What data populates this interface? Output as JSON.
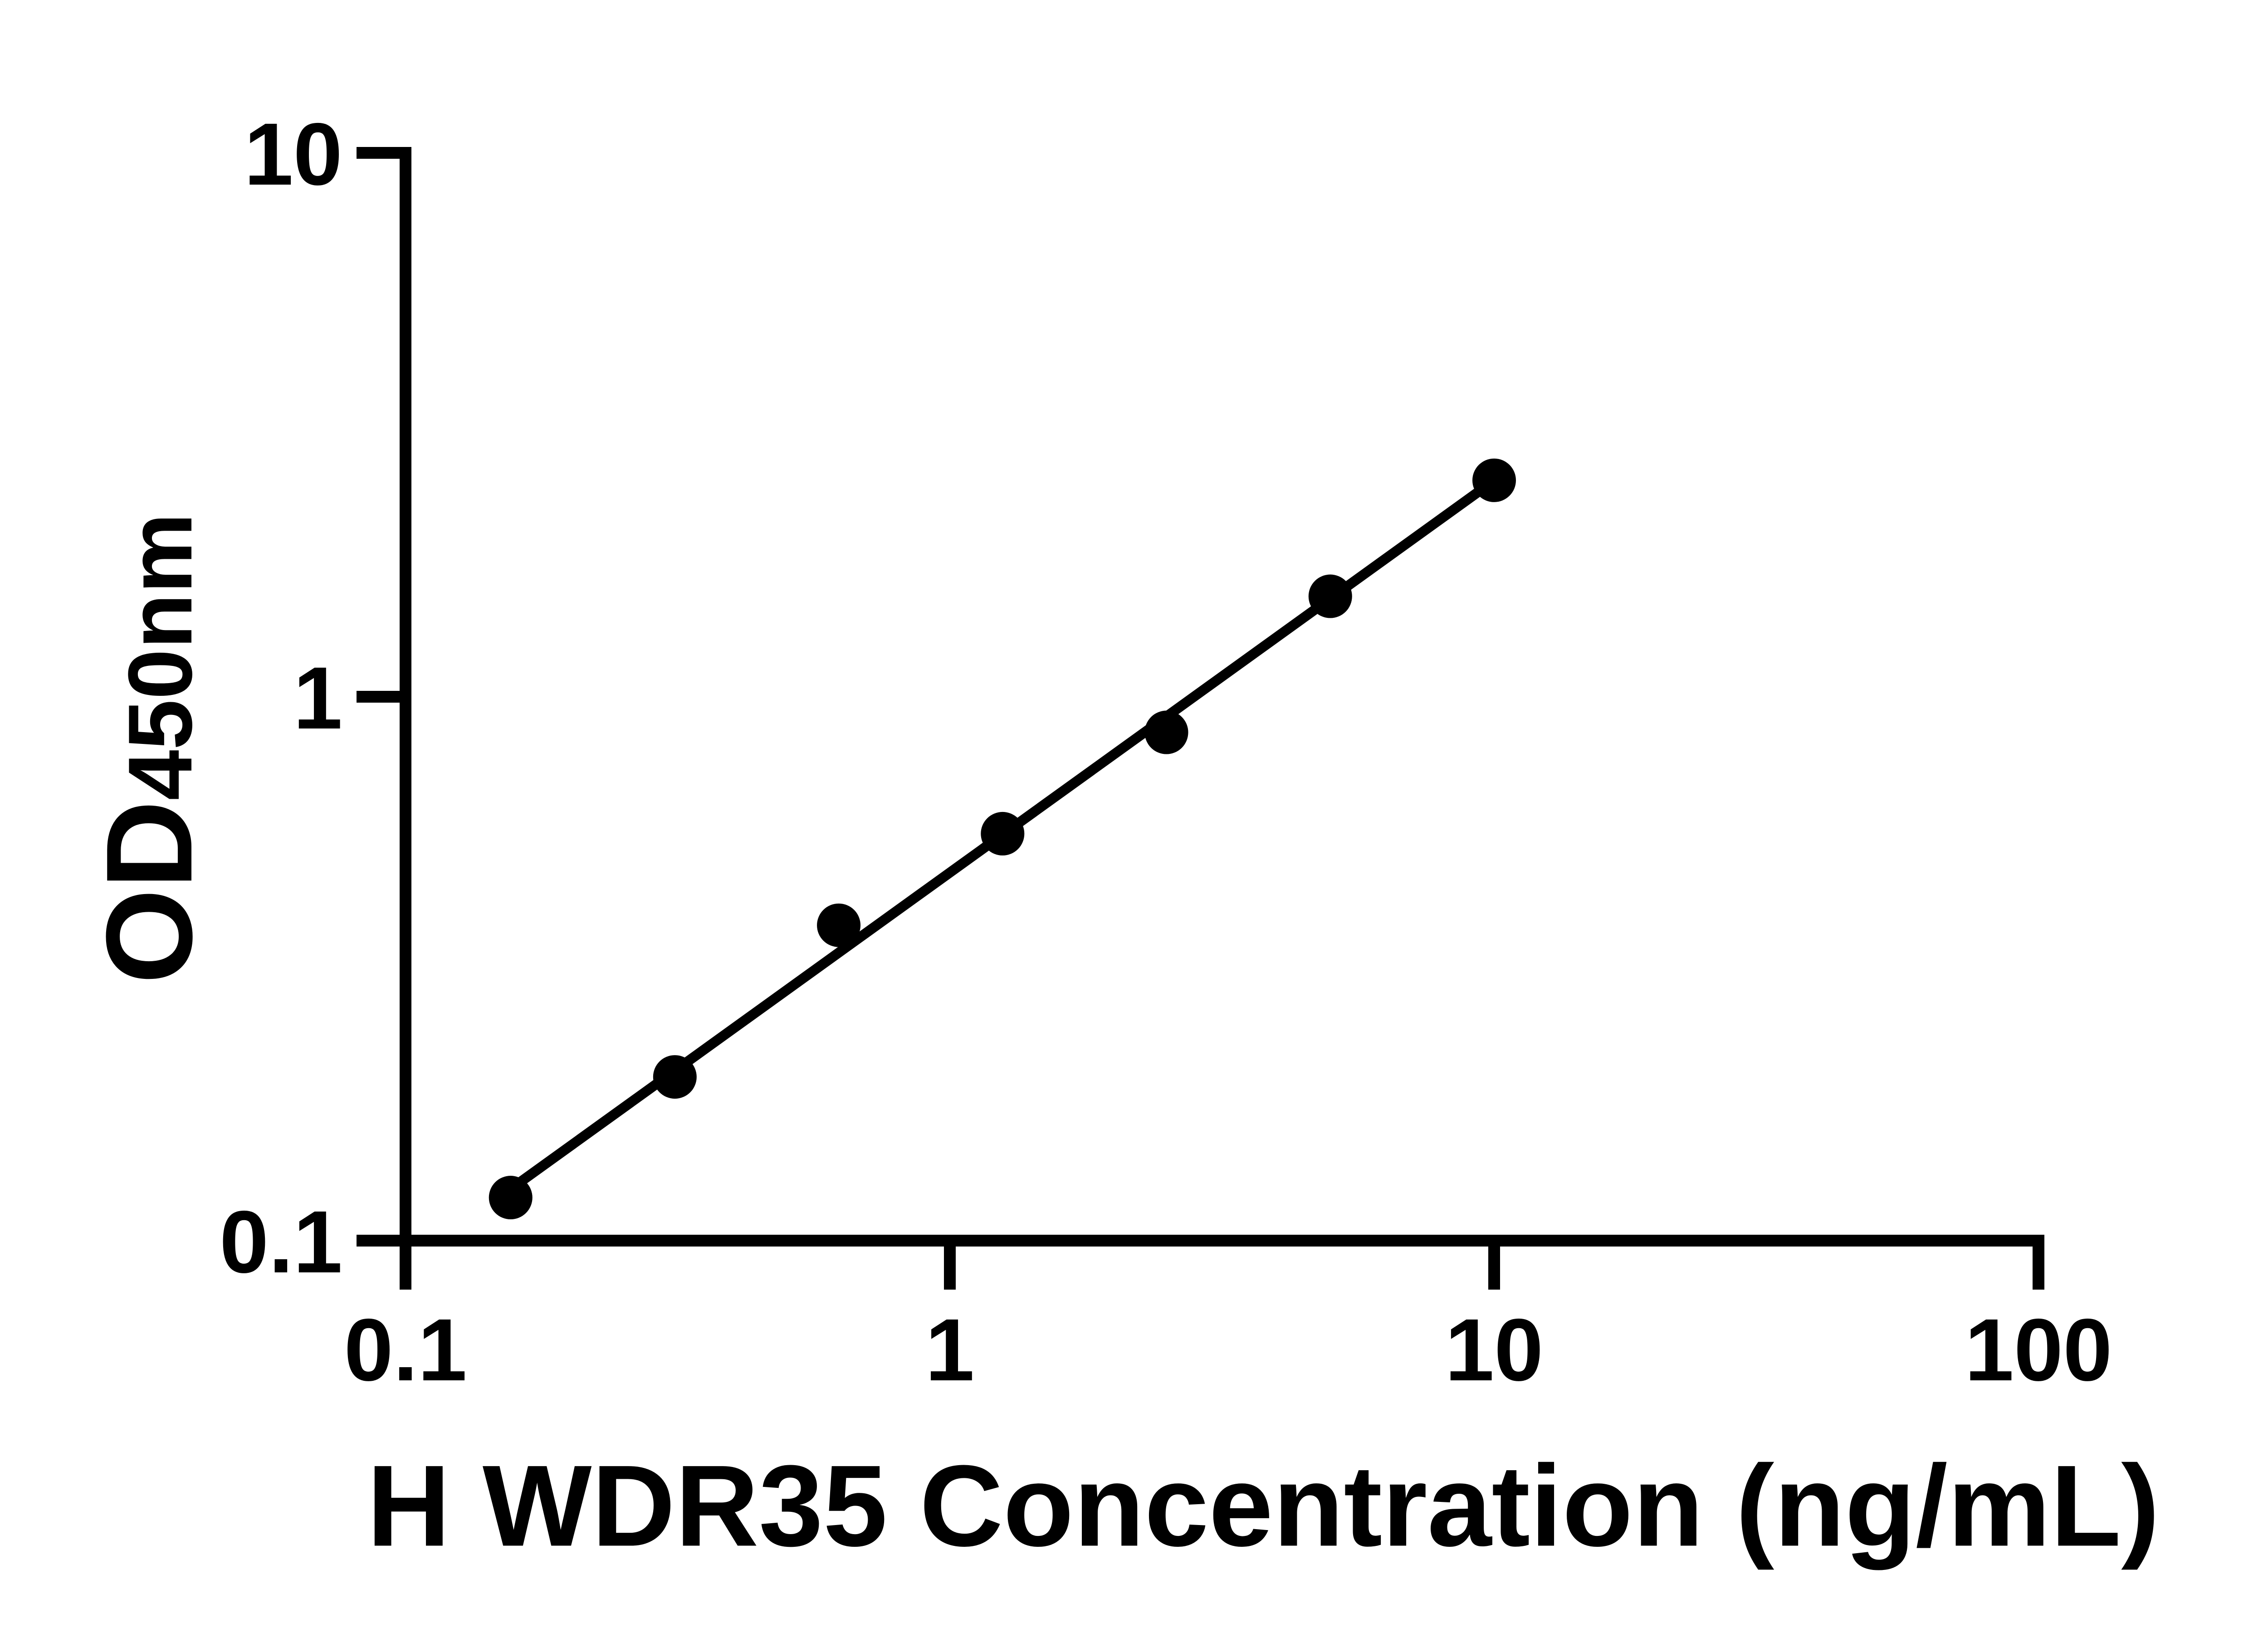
{
  "chart_data": {
    "type": "scatter",
    "title": "",
    "xlabel": "H WDR35 Concentration (ng/mL)",
    "ylabel_main": "OD",
    "ylabel_sub": "450nm",
    "x_scale": "log",
    "y_scale": "log",
    "xlim": [
      0.1,
      100
    ],
    "ylim": [
      0.1,
      10
    ],
    "x_ticks": [
      0.1,
      1,
      10,
      100
    ],
    "x_tick_labels": [
      "0.1",
      "1",
      "10",
      "100"
    ],
    "y_ticks": [
      0.1,
      1,
      10
    ],
    "y_tick_labels": [
      "0.1",
      "1",
      "10"
    ],
    "points": [
      {
        "x": 0.156,
        "y": 0.12
      },
      {
        "x": 0.3125,
        "y": 0.2
      },
      {
        "x": 0.625,
        "y": 0.38
      },
      {
        "x": 1.25,
        "y": 0.56
      },
      {
        "x": 2.5,
        "y": 0.86
      },
      {
        "x": 5,
        "y": 1.53
      },
      {
        "x": 10,
        "y": 2.5
      }
    ],
    "trendline": {
      "type": "linear-loglog-fit",
      "x_start": 0.156,
      "x_end": 10
    },
    "grid": false,
    "legend": null,
    "marker_color": "#000000",
    "line_color": "#000000",
    "axis_color": "#000000",
    "background_color": "#ffffff"
  }
}
